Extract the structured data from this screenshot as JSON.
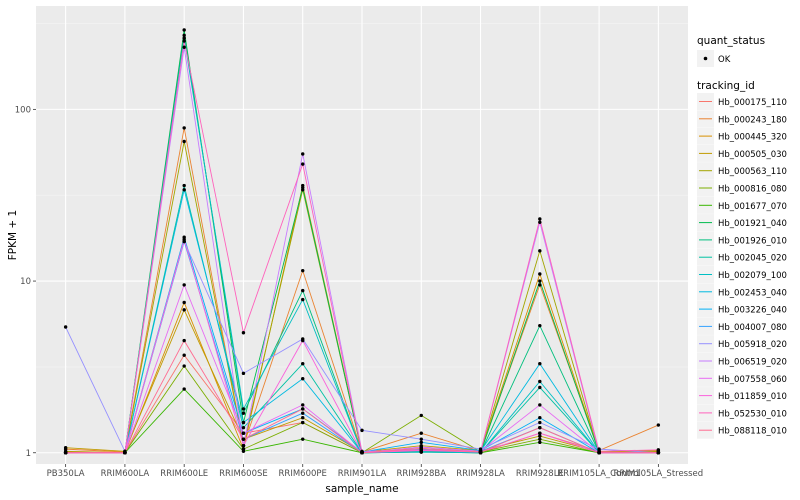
{
  "chart_data": {
    "type": "line",
    "xlabel": "sample_name",
    "ylabel": "FPKM + 1",
    "y_scale": "log10",
    "ylim": [
      0.86,
      400
    ],
    "y_ticks": [
      1,
      10,
      100
    ],
    "y_tick_labels": [
      "1",
      "10",
      "100"
    ],
    "grid": true,
    "categories": [
      "PB350LA",
      "RRIM600LA",
      "RRIM600LE",
      "RRIM600SE",
      "RRIM600PE",
      "RRIM901LA",
      "RRIM928BA",
      "RRIM928LA",
      "RRIM928LE",
      "RRIM105LA_Control",
      "RRIM105LA_Stressed"
    ],
    "legend_position": "right",
    "legend": {
      "shape_title": "quant_status",
      "shape_items": [
        "OK"
      ],
      "color_title": "tracking_id"
    },
    "series": [
      {
        "name": "Hb_000175_110",
        "color": "#F8766D",
        "values": [
          1.0,
          1.0,
          3.7,
          1.3,
          1.5,
          1.0,
          1.04,
          1.0,
          1.3,
          1.02,
          1.0
        ]
      },
      {
        "name": "Hb_000243_180",
        "color": "#EA8331",
        "values": [
          1.05,
          1.01,
          78,
          1.1,
          11.5,
          1.01,
          1.3,
          1.02,
          9.5,
          1.03,
          1.45
        ]
      },
      {
        "name": "Hb_000445_320",
        "color": "#D89000",
        "values": [
          1.02,
          1.0,
          7.5,
          1.05,
          36,
          1.01,
          1.06,
          1.01,
          11.0,
          1.01,
          1.02
        ]
      },
      {
        "name": "Hb_000505_030",
        "color": "#C09B00",
        "values": [
          1.07,
          1.02,
          6.8,
          1.2,
          1.6,
          1.01,
          1.1,
          1.03,
          1.25,
          1.01,
          1.03
        ]
      },
      {
        "name": "Hb_000563_110",
        "color": "#A3A500",
        "values": [
          1.0,
          1.0,
          65,
          1.1,
          34,
          1.0,
          1.02,
          1.0,
          15.0,
          1.0,
          1.0
        ]
      },
      {
        "name": "Hb_000816_080",
        "color": "#7CAE00",
        "values": [
          1.01,
          1.0,
          3.2,
          1.05,
          1.5,
          1.0,
          1.65,
          1.01,
          1.2,
          1.0,
          1.01
        ]
      },
      {
        "name": "Hb_001677_070",
        "color": "#39B600",
        "values": [
          1.0,
          1.0,
          2.35,
          1.02,
          1.2,
          1.0,
          1.03,
          1.0,
          1.15,
          1.0,
          1.0
        ]
      },
      {
        "name": "Hb_001921_040",
        "color": "#00BB4E",
        "values": [
          1.0,
          1.0,
          290,
          1.5,
          35,
          1.0,
          1.01,
          1.0,
          10.0,
          1.0,
          1.0
        ]
      },
      {
        "name": "Hb_001926_010",
        "color": "#00BF7D",
        "values": [
          1.0,
          1.0,
          270,
          1.7,
          8.8,
          1.0,
          1.01,
          1.0,
          5.5,
          1.0,
          1.0
        ]
      },
      {
        "name": "Hb_002045_020",
        "color": "#00C1A3",
        "values": [
          1.0,
          1.0,
          36,
          1.4,
          3.3,
          1.0,
          1.02,
          1.0,
          2.4,
          1.0,
          1.0
        ]
      },
      {
        "name": "Hb_002079_100",
        "color": "#00BFC4",
        "values": [
          1.0,
          1.0,
          260,
          1.8,
          7.8,
          1.0,
          1.01,
          1.0,
          2.6,
          1.0,
          1.0
        ]
      },
      {
        "name": "Hb_002453_040",
        "color": "#00BAE0",
        "values": [
          1.0,
          1.0,
          34,
          1.5,
          2.7,
          1.0,
          1.05,
          1.02,
          3.3,
          1.0,
          1.0
        ]
      },
      {
        "name": "Hb_003226_040",
        "color": "#00B0F6",
        "values": [
          1.0,
          1.0,
          18,
          1.3,
          1.8,
          1.01,
          1.15,
          1.03,
          1.6,
          1.0,
          1.0
        ]
      },
      {
        "name": "Hb_004007_080",
        "color": "#35A2FF",
        "values": [
          1.0,
          1.0,
          17,
          1.2,
          1.7,
          1.0,
          1.08,
          1.02,
          1.4,
          1.0,
          1.0
        ]
      },
      {
        "name": "Hb_005918_020",
        "color": "#9590FF",
        "values": [
          5.4,
          1.02,
          17,
          2.9,
          4.6,
          1.35,
          1.2,
          1.05,
          1.5,
          1.05,
          1.0
        ]
      },
      {
        "name": "Hb_006519_020",
        "color": "#C77CFF",
        "values": [
          1.0,
          1.0,
          230,
          1.1,
          55,
          1.02,
          1.04,
          1.01,
          22.0,
          1.0,
          1.0
        ]
      },
      {
        "name": "Hb_007558_060",
        "color": "#E76BF3",
        "values": [
          1.0,
          1.0,
          9.5,
          1.3,
          1.9,
          1.0,
          1.08,
          1.02,
          1.9,
          1.0,
          1.0
        ]
      },
      {
        "name": "Hb_011859_010",
        "color": "#FA62DB",
        "values": [
          1.0,
          1.0,
          17.5,
          1.1,
          4.5,
          1.0,
          1.03,
          1.01,
          1.3,
          1.0,
          1.0
        ]
      },
      {
        "name": "Hb_052530_010",
        "color": "#FF62BC",
        "values": [
          1.0,
          1.0,
          250,
          5.0,
          48,
          1.0,
          1.04,
          1.01,
          23.0,
          1.02,
          1.04
        ]
      },
      {
        "name": "Hb_088118_010",
        "color": "#FF6C91",
        "values": [
          1.0,
          1.0,
          4.5,
          1.2,
          1.8,
          1.0,
          1.06,
          1.01,
          1.4,
          1.0,
          1.0
        ]
      }
    ]
  }
}
